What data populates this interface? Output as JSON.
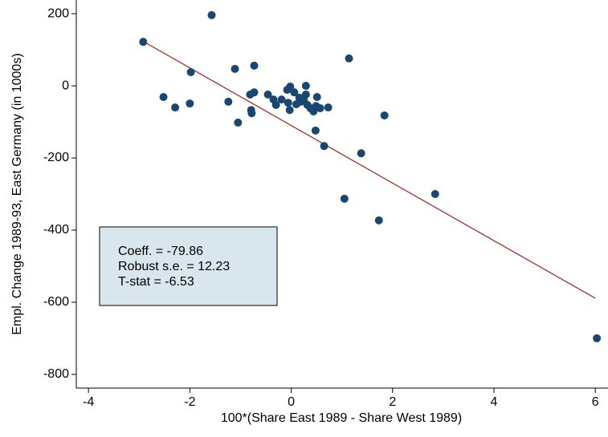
{
  "chart_data": {
    "type": "scatter",
    "x_label": "100*(Share East 1989 - Share West 1989)",
    "y_label": "Empl. Change 1989-93, East Germany (in 1000s)",
    "x": [
      -2.92,
      -1.57,
      -1.98,
      -2.52,
      -2.29,
      -2.0,
      -1.11,
      -0.73,
      -1.24,
      -1.05,
      -0.81,
      -0.73,
      -0.79,
      -0.78,
      -0.46,
      -0.35,
      -0.3,
      -0.19,
      -0.08,
      -0.02,
      -0.06,
      -0.03,
      0.06,
      0.1,
      0.16,
      0.19,
      0.25,
      0.29,
      0.29,
      0.32,
      0.38,
      0.44,
      0.51,
      0.49,
      0.57,
      0.48,
      0.65,
      0.73,
      1.14,
      1.05,
      1.38,
      1.73,
      1.84,
      2.84,
      6.03
    ],
    "values": [
      122,
      196,
      38,
      -31,
      -60,
      -49,
      47,
      56,
      -44,
      -102,
      -24,
      -18,
      -67,
      -76,
      -24,
      -38,
      -53,
      -38,
      -11,
      -2,
      -47,
      -67,
      -18,
      -51,
      -33,
      -44,
      -40,
      -24,
      0,
      -53,
      -62,
      -71,
      -31,
      -56,
      -62,
      -124,
      -167,
      -60,
      76,
      -313,
      -187,
      -373,
      -82,
      -300,
      -700
    ],
    "color": "#1a476f",
    "fit_line": {
      "x": [
        -2.88,
        6.0
      ],
      "values": [
        120,
        -589
      ],
      "color": "#a0322b"
    },
    "annotations": [
      "Coeff. = -79.86",
      "Robust s.e. = 12.23",
      "T-stat = -6.53"
    ],
    "xlim": [
      -4.24,
      6.25
    ],
    "ylim": [
      -838,
      238
    ],
    "xticks": [
      -4,
      -2,
      0,
      2,
      4,
      6
    ],
    "yticks": [
      200,
      0,
      -200,
      -400,
      -600,
      -800
    ]
  }
}
